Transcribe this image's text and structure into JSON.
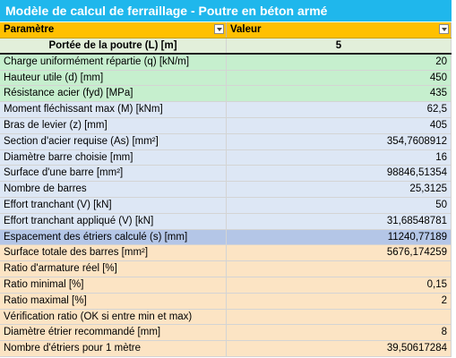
{
  "title": "Modèle de calcul de ferraillage - Poutre en béton armé",
  "columns": {
    "param": "Paramètre",
    "value": "Valeur"
  },
  "rows": [
    {
      "label": "Portée de la poutre (L) [m]",
      "value": "5",
      "style": "w first"
    },
    {
      "label": "Charge uniformément répartie (q) [kN/m]",
      "value": "20",
      "style": "g"
    },
    {
      "label": "Hauteur utile (d) [mm]",
      "value": "450",
      "style": "g"
    },
    {
      "label": "Résistance acier (fyd) [MPa]",
      "value": "435",
      "style": "g"
    },
    {
      "label": "Moment fléchissant max (M) [kNm]",
      "value": "62,5",
      "style": "b"
    },
    {
      "label": "Bras de levier (z) [mm]",
      "value": "405",
      "style": "b"
    },
    {
      "label": "Section d'acier requise (As) [mm²]",
      "value": "354,7608912",
      "style": "b"
    },
    {
      "label": "Diamètre barre choisie [mm]",
      "value": "16",
      "style": "b"
    },
    {
      "label": "Surface d'une barre [mm²]",
      "value": "98846,51354",
      "style": "b"
    },
    {
      "label": "Nombre de barres",
      "value": "25,3125",
      "style": "b"
    },
    {
      "label": "Effort tranchant (V) [kN]",
      "value": "50",
      "style": "b"
    },
    {
      "label": "Effort tranchant appliqué (V) [kN]",
      "value": "31,68548781",
      "style": "b"
    },
    {
      "label": "Espacement des étriers calculé (s) [mm]",
      "value": "11240,77189",
      "style": "s"
    },
    {
      "label": "Surface totale des barres [mm²]",
      "value": "5676,174259",
      "style": "o"
    },
    {
      "label": "Ratio d'armature réel [%]",
      "value": "",
      "style": "o"
    },
    {
      "label": "Ratio minimal [%]",
      "value": "0,15",
      "style": "o"
    },
    {
      "label": "Ratio maximal [%]",
      "value": "2",
      "style": "o"
    },
    {
      "label": "Vérification ratio (OK si entre min et max)",
      "value": "",
      "style": "o"
    },
    {
      "label": "Diamètre étrier recommandé [mm]",
      "value": "8",
      "style": "o"
    },
    {
      "label": "Nombre d'étriers pour 1 mètre",
      "value": "39,50617284",
      "style": "o"
    }
  ]
}
